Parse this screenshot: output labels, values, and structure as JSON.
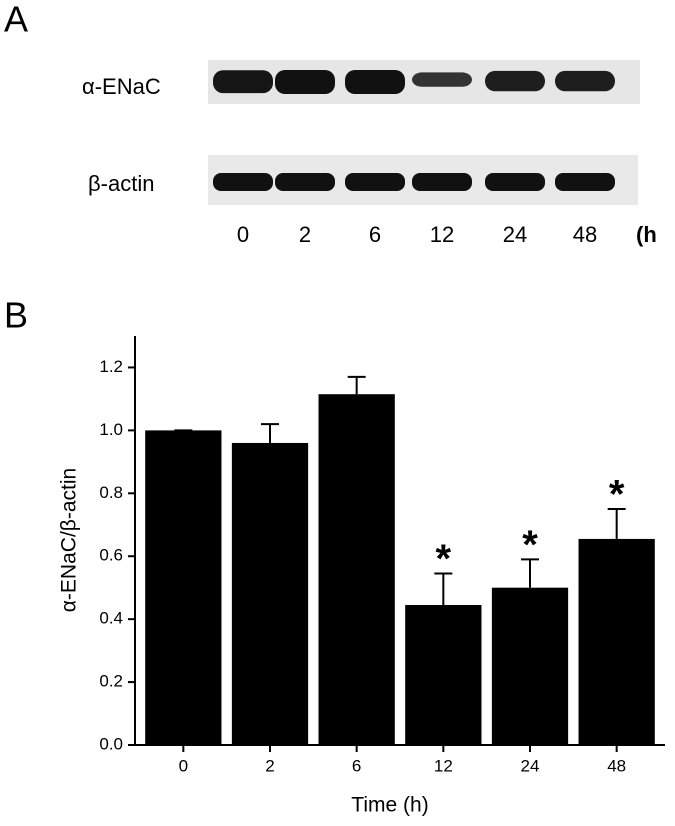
{
  "panel_a": {
    "label": "A",
    "rows": [
      "α-ENaC",
      "β-actin"
    ],
    "lanes": [
      "0",
      "2",
      "6",
      "12",
      "24",
      "48"
    ],
    "unit": "(h"
  },
  "panel_b_label": "B",
  "chart_data": {
    "type": "bar",
    "x_label": "Time (h)",
    "y_label": "α-ENaC/β-actin",
    "categories": [
      "0",
      "2",
      "6",
      "12",
      "24",
      "48"
    ],
    "values": [
      1.0,
      0.96,
      1.115,
      0.445,
      0.5,
      0.655
    ],
    "errors": [
      0,
      0.06,
      0.055,
      0.1,
      0.09,
      0.095
    ],
    "significance": [
      null,
      null,
      null,
      "*",
      "*",
      "*"
    ],
    "color": "#000000",
    "ylim": [
      0,
      1.3
    ],
    "yticks": [
      {
        "value": 0,
        "label": "0.0"
      },
      {
        "value": 0.2,
        "label": "0.2"
      },
      {
        "value": 0.4,
        "label": "0.4"
      },
      {
        "value": 0.6,
        "label": "0.6"
      },
      {
        "value": 0.8,
        "label": "0.8"
      },
      {
        "value": 1.0,
        "label": "1.0"
      },
      {
        "value": 1.2,
        "label": "1.2"
      }
    ],
    "grid": false
  }
}
